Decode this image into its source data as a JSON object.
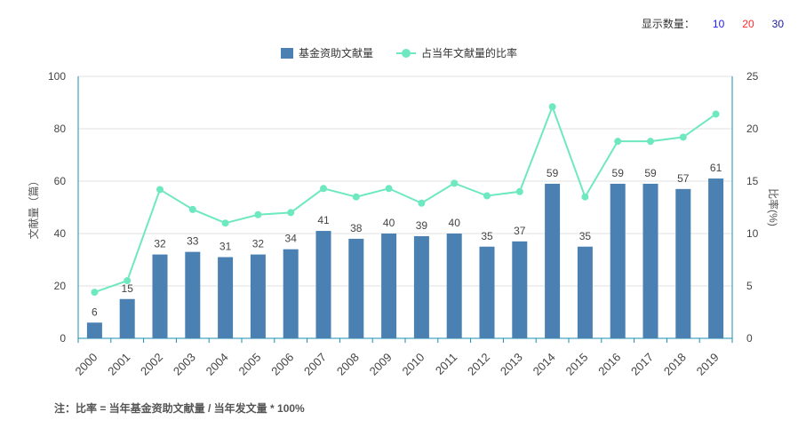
{
  "controls": {
    "label": "显示数量：",
    "options": [
      "10",
      "20",
      "30"
    ],
    "option_colors": [
      "#1a1aff",
      "#ff2a2a",
      "#1a1aa0"
    ]
  },
  "legend": {
    "bar_label": "基金资助文献量",
    "line_label": "占当年文献量的比率"
  },
  "note": "注：比率 = 当年基金资助文献量 / 当年发文量 * 100%",
  "colors": {
    "bar": "#4a80b2",
    "line": "#6ee8c0",
    "axis": "#1a8fb0",
    "grid": "#e2e2e2"
  },
  "chart_data": {
    "type": "bar",
    "title": "",
    "ylabel": "文献量（篇）",
    "y2label": "比率(%)",
    "ylim": [
      0,
      100
    ],
    "y2lim": [
      0,
      25
    ],
    "yticks": [
      0,
      20,
      40,
      60,
      80,
      100
    ],
    "y2ticks": [
      0,
      5,
      10,
      15,
      20,
      25
    ],
    "categories": [
      "2000",
      "2001",
      "2002",
      "2003",
      "2004",
      "2005",
      "2006",
      "2007",
      "2008",
      "2009",
      "2010",
      "2011",
      "2012",
      "2013",
      "2014",
      "2015",
      "2016",
      "2017",
      "2018",
      "2019"
    ],
    "series": [
      {
        "name": "基金资助文献量",
        "type": "bar",
        "values": [
          6,
          15,
          32,
          33,
          31,
          32,
          34,
          41,
          38,
          40,
          39,
          40,
          35,
          37,
          59,
          35,
          59,
          59,
          57,
          61
        ]
      },
      {
        "name": "占当年文献量的比率",
        "type": "line",
        "axis": "right",
        "values": [
          4.4,
          5.5,
          14.2,
          12.3,
          11.0,
          11.8,
          12.0,
          14.3,
          13.5,
          14.3,
          12.9,
          14.8,
          13.6,
          14.0,
          22.1,
          13.5,
          18.8,
          18.8,
          19.2,
          21.4
        ]
      }
    ],
    "grid": true,
    "legend_position": "top-center"
  }
}
